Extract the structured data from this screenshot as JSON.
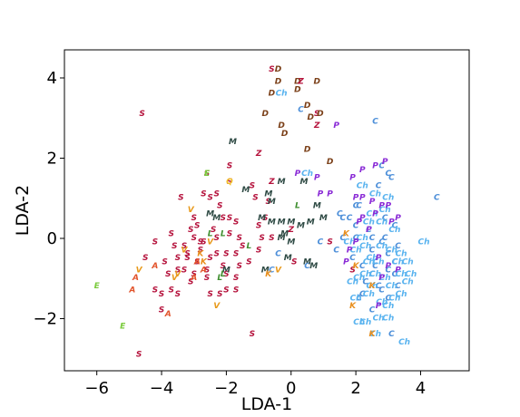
{
  "chart_data": {
    "type": "scatter",
    "title": "",
    "xlabel": "LDA-1",
    "ylabel": "LDA-2",
    "xlim": [
      -7.0,
      5.5
    ],
    "ylim": [
      -3.3,
      4.7
    ],
    "xticks": [
      -6,
      -4,
      -2,
      0,
      2,
      4
    ],
    "yticks": [
      -2,
      0,
      2,
      4
    ],
    "xtick_labels": [
      "−6",
      "−4",
      "−2",
      "0",
      "2",
      "4"
    ],
    "ytick_labels": [
      "−2",
      "0",
      "2",
      "4"
    ],
    "grid": false,
    "legend": "none",
    "series": [
      {
        "label": "S",
        "color": "#b5123c",
        "points": [
          [
            -4.6,
            3.1
          ],
          [
            -3.4,
            1.0
          ],
          [
            -3.1,
            0.2
          ],
          [
            -3.0,
            0.5
          ],
          [
            -2.7,
            1.1
          ],
          [
            -2.6,
            1.6
          ],
          [
            -2.5,
            1.0
          ],
          [
            -2.3,
            1.1
          ],
          [
            -2.2,
            0.8
          ],
          [
            -1.9,
            1.8
          ],
          [
            -1.9,
            1.4
          ],
          [
            -1.9,
            0.5
          ],
          [
            -1.9,
            0.1
          ],
          [
            -1.7,
            0.4
          ],
          [
            -1.6,
            0.0
          ],
          [
            -1.5,
            -0.2
          ],
          [
            -1.7,
            -0.4
          ],
          [
            -1.6,
            -0.7
          ],
          [
            -2.1,
            -0.7
          ],
          [
            -2.3,
            -0.4
          ],
          [
            -2.5,
            -0.5
          ],
          [
            -2.6,
            -0.8
          ],
          [
            -2.8,
            -0.3
          ],
          [
            -2.8,
            -0.1
          ],
          [
            -2.9,
            -0.6
          ],
          [
            -3.0,
            -0.9
          ],
          [
            -3.2,
            -0.5
          ],
          [
            -3.3,
            -0.2
          ],
          [
            -3.5,
            -0.5
          ],
          [
            -3.6,
            -0.2
          ],
          [
            -3.7,
            0.1
          ],
          [
            -3.5,
            -0.8
          ],
          [
            -3.3,
            -0.8
          ],
          [
            -3.1,
            -1.1
          ],
          [
            -3.0,
            0.0
          ],
          [
            -2.7,
            -0.1
          ],
          [
            -2.4,
            0.2
          ],
          [
            -2.1,
            0.5
          ],
          [
            -2.6,
            -1.0
          ],
          [
            -2.2,
            -1.4
          ],
          [
            -2.5,
            -1.4
          ],
          [
            -2.0,
            -0.9
          ],
          [
            -1.7,
            -1.0
          ],
          [
            -1.3,
            -0.6
          ],
          [
            -1.0,
            -0.3
          ],
          [
            -0.9,
            0.0
          ],
          [
            -0.8,
            0.5
          ],
          [
            -0.6,
            0.0
          ],
          [
            -2.0,
            -1.3
          ],
          [
            -1.7,
            -1.3
          ],
          [
            -3.7,
            -1.3
          ],
          [
            -3.8,
            -0.9
          ],
          [
            -3.9,
            -0.6
          ],
          [
            -4.0,
            -1.4
          ],
          [
            -4.2,
            -1.3
          ],
          [
            -3.5,
            -1.4
          ],
          [
            -4.0,
            -1.8
          ],
          [
            -4.5,
            -0.5
          ],
          [
            -4.2,
            -0.1
          ],
          [
            -4.7,
            -2.9
          ],
          [
            -1.2,
            -2.4
          ],
          [
            -2.0,
            -0.4
          ],
          [
            -1.1,
            1.0
          ],
          [
            -1.2,
            1.3
          ],
          [
            -1.0,
            0.3
          ],
          [
            -0.7,
            0.9
          ],
          [
            0.1,
            -0.6
          ],
          [
            -0.6,
            4.2
          ],
          [
            0.8,
            3.1
          ],
          [
            1.2,
            -0.1
          ],
          [
            1.9,
            -0.8
          ],
          [
            -2.3,
            0.0
          ],
          [
            -3.2,
            -0.4
          ],
          [
            -2.9,
            0.3
          ]
        ]
      },
      {
        "label": "C",
        "color": "#4d8fd9",
        "points": [
          [
            2.6,
            2.9
          ],
          [
            4.5,
            1.0
          ],
          [
            2.7,
            1.3
          ],
          [
            2.1,
            0.8
          ],
          [
            1.8,
            0.5
          ],
          [
            1.6,
            0.5
          ],
          [
            2.0,
            0.3
          ],
          [
            2.4,
            0.2
          ],
          [
            2.9,
            0.5
          ],
          [
            3.2,
            0.3
          ],
          [
            3.0,
            -0.4
          ],
          [
            2.6,
            -0.7
          ],
          [
            3.2,
            -0.9
          ],
          [
            2.8,
            -1.3
          ],
          [
            2.2,
            -1.4
          ],
          [
            2.5,
            -1.8
          ],
          [
            3.0,
            -1.5
          ],
          [
            3.3,
            -1.2
          ],
          [
            2.5,
            -0.3
          ],
          [
            2.9,
            0.0
          ],
          [
            2.0,
            0.0
          ],
          [
            1.6,
            0.0
          ],
          [
            0.9,
            -0.1
          ],
          [
            -0.4,
            -0.4
          ],
          [
            -0.6,
            -0.8
          ],
          [
            0.5,
            -0.7
          ],
          [
            1.4,
            -0.3
          ],
          [
            3.1,
            -2.4
          ],
          [
            2.3,
            -1.1
          ],
          [
            2.5,
            -0.9
          ],
          [
            3.0,
            -0.8
          ],
          [
            3.1,
            1.5
          ],
          [
            2.8,
            1.8
          ],
          [
            3.0,
            1.6
          ],
          [
            2.0,
            0.8
          ],
          [
            1.5,
            0.6
          ],
          [
            2.5,
            0.0
          ],
          [
            1.9,
            -0.5
          ],
          [
            2.8,
            -0.1
          ],
          [
            3.3,
            -0.2
          ],
          [
            2.1,
            -1.5
          ],
          [
            2.7,
            -1.2
          ],
          [
            0.3,
            3.2
          ],
          [
            3.2,
            -0.6
          ],
          [
            2.2,
            -0.7
          ]
        ]
      },
      {
        "label": "Ch",
        "color": "#59b3ef",
        "points": [
          [
            -0.3,
            3.6
          ],
          [
            0.5,
            1.6
          ],
          [
            4.1,
            -0.1
          ],
          [
            3.5,
            -2.6
          ],
          [
            2.6,
            -2.4
          ],
          [
            2.7,
            -2.0
          ],
          [
            2.3,
            -2.1
          ],
          [
            2.1,
            -2.1
          ],
          [
            2.0,
            -1.5
          ],
          [
            3.2,
            -1.5
          ],
          [
            3.4,
            -1.4
          ],
          [
            3.6,
            -1.1
          ],
          [
            3.4,
            -0.9
          ],
          [
            3.3,
            -0.6
          ],
          [
            3.1,
            -0.3
          ],
          [
            2.8,
            -0.2
          ],
          [
            2.5,
            -0.5
          ],
          [
            2.3,
            -0.2
          ],
          [
            2.0,
            -0.3
          ],
          [
            1.8,
            -0.1
          ],
          [
            2.6,
            -0.9
          ],
          [
            2.4,
            -0.6
          ],
          [
            2.9,
            -1.0
          ],
          [
            3.1,
            -1.2
          ],
          [
            2.8,
            -1.6
          ],
          [
            2.5,
            -1.2
          ],
          [
            2.3,
            -0.9
          ],
          [
            2.1,
            -1.0
          ],
          [
            1.9,
            -1.1
          ],
          [
            3.4,
            -0.4
          ],
          [
            3.6,
            -0.6
          ],
          [
            3.7,
            -0.9
          ],
          [
            3.0,
            -1.7
          ],
          [
            2.4,
            -1.4
          ],
          [
            2.7,
            -0.6
          ],
          [
            3.2,
            0.2
          ],
          [
            2.8,
            0.4
          ],
          [
            2.5,
            0.6
          ],
          [
            2.9,
            0.7
          ],
          [
            3.0,
            1.0
          ],
          [
            2.6,
            1.1
          ],
          [
            2.2,
            1.3
          ],
          [
            2.4,
            0.4
          ],
          [
            2.2,
            0.0
          ],
          [
            3.0,
            -2.0
          ]
        ]
      },
      {
        "label": "P",
        "color": "#8a2bd6",
        "points": [
          [
            1.4,
            2.8
          ],
          [
            0.2,
            1.6
          ],
          [
            0.8,
            1.5
          ],
          [
            0.9,
            1.1
          ],
          [
            1.2,
            1.1
          ],
          [
            1.9,
            1.5
          ],
          [
            2.2,
            1.7
          ],
          [
            2.6,
            1.8
          ],
          [
            2.9,
            1.9
          ],
          [
            2.0,
            1.0
          ],
          [
            2.2,
            1.0
          ],
          [
            2.5,
            0.9
          ],
          [
            2.8,
            0.8
          ],
          [
            3.0,
            0.8
          ],
          [
            3.3,
            0.5
          ],
          [
            2.2,
            0.5
          ],
          [
            2.6,
            0.6
          ],
          [
            2.1,
            0.4
          ],
          [
            2.4,
            0.2
          ],
          [
            2.0,
            -0.1
          ],
          [
            1.8,
            -0.3
          ],
          [
            1.7,
            -0.6
          ],
          [
            2.7,
            -0.5
          ],
          [
            3.0,
            -0.7
          ],
          [
            3.3,
            -0.8
          ],
          [
            2.8,
            -1.0
          ],
          [
            2.7,
            -1.7
          ],
          [
            3.1,
            0.4
          ]
        ]
      },
      {
        "label": "M",
        "color": "#2e4a44",
        "points": [
          [
            -1.8,
            2.4
          ],
          [
            -1.4,
            1.2
          ],
          [
            -0.7,
            1.1
          ],
          [
            -0.6,
            0.9
          ],
          [
            -0.9,
            0.5
          ],
          [
            -0.6,
            0.4
          ],
          [
            -0.3,
            0.4
          ],
          [
            -0.2,
            0.1
          ],
          [
            0.0,
            0.4
          ],
          [
            0.3,
            0.3
          ],
          [
            0.6,
            0.4
          ],
          [
            0.8,
            0.8
          ],
          [
            0.4,
            1.4
          ],
          [
            -0.3,
            1.4
          ],
          [
            -2.3,
            0.5
          ],
          [
            -2.5,
            0.6
          ],
          [
            -0.1,
            -0.5
          ],
          [
            0.5,
            -0.6
          ],
          [
            0.7,
            -0.7
          ],
          [
            1.0,
            0.5
          ],
          [
            -0.8,
            -0.8
          ],
          [
            -2.0,
            -0.8
          ],
          [
            -0.3,
            0.0
          ],
          [
            0.0,
            -0.1
          ]
        ]
      },
      {
        "label": "D",
        "color": "#7b4019",
        "points": [
          [
            -0.4,
            4.2
          ],
          [
            0.2,
            3.9
          ],
          [
            0.8,
            3.9
          ],
          [
            0.2,
            3.7
          ],
          [
            -0.6,
            3.6
          ],
          [
            0.5,
            3.3
          ],
          [
            0.9,
            3.1
          ],
          [
            -0.8,
            3.1
          ],
          [
            0.6,
            3.0
          ],
          [
            -0.3,
            2.8
          ],
          [
            -0.2,
            2.6
          ],
          [
            0.5,
            2.2
          ],
          [
            1.2,
            1.9
          ],
          [
            -0.4,
            3.9
          ]
        ]
      },
      {
        "label": "Z",
        "color": "#b5123c",
        "points": [
          [
            0.3,
            3.9
          ],
          [
            0.8,
            2.8
          ],
          [
            -1.0,
            2.1
          ],
          [
            -0.6,
            1.4
          ],
          [
            0.0,
            0.2
          ]
        ]
      },
      {
        "label": "L",
        "color": "#3e8e2e",
        "points": [
          [
            0.2,
            0.8
          ],
          [
            -2.5,
            0.1
          ],
          [
            -2.1,
            0.1
          ],
          [
            -1.3,
            -0.2
          ],
          [
            -2.1,
            -0.9
          ],
          [
            -2.2,
            -1.0
          ],
          [
            -2.6,
            1.6
          ]
        ]
      },
      {
        "label": "K",
        "color": "#e88e1c",
        "points": [
          [
            2.5,
            -2.4
          ],
          [
            1.9,
            -1.7
          ],
          [
            2.0,
            -0.7
          ],
          [
            2.5,
            -1.2
          ],
          [
            1.7,
            0.1
          ],
          [
            -0.7,
            -0.9
          ],
          [
            -2.8,
            -0.4
          ],
          [
            -2.7,
            -0.6
          ]
        ]
      },
      {
        "label": "A",
        "color": "#e2542c",
        "points": [
          [
            -4.9,
            -1.3
          ],
          [
            -4.8,
            -1.0
          ],
          [
            -3.8,
            -1.9
          ],
          [
            -4.2,
            -0.7
          ],
          [
            -2.7,
            -0.8
          ],
          [
            -2.9,
            -0.6
          ],
          [
            -3.0,
            -1.0
          ]
        ]
      },
      {
        "label": "V",
        "color": "#e89a1c",
        "points": [
          [
            -4.7,
            -0.8
          ],
          [
            -3.6,
            -1.0
          ],
          [
            -3.1,
            0.7
          ],
          [
            -2.3,
            -1.7
          ],
          [
            -3.3,
            -0.3
          ],
          [
            -2.5,
            -0.1
          ],
          [
            -0.4,
            -0.8
          ],
          [
            -3.5,
            -0.9
          ]
        ]
      },
      {
        "label": "E",
        "color": "#7acb3c",
        "points": [
          [
            -6.0,
            -1.2
          ],
          [
            -5.2,
            -2.2
          ],
          [
            -2.6,
            1.6
          ]
        ]
      },
      {
        "label": "Q",
        "color": "#f2c12a",
        "points": [
          [
            -1.9,
            1.4
          ]
        ]
      }
    ]
  }
}
